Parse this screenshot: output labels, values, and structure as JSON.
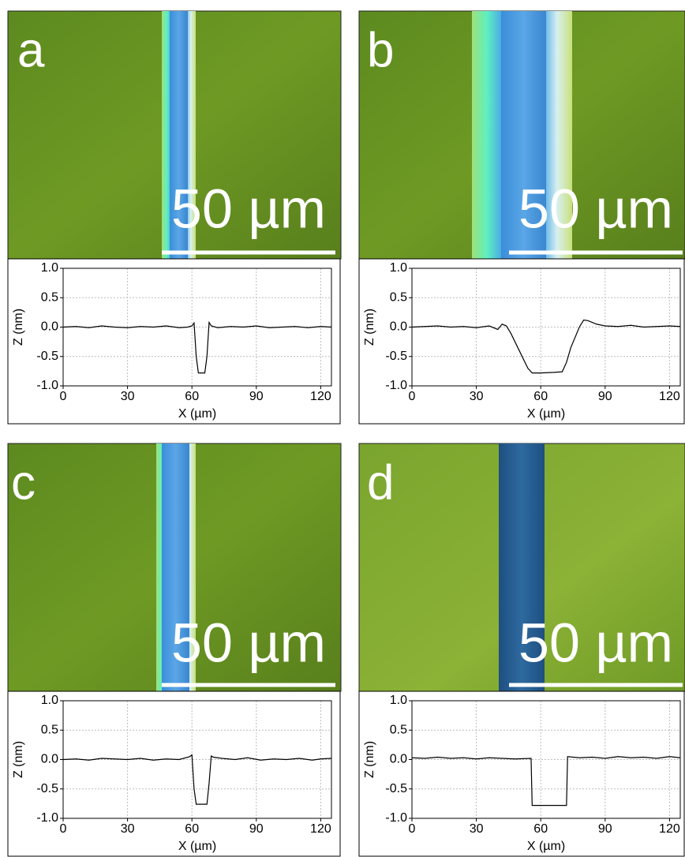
{
  "panels": [
    {
      "label": "a",
      "scale_bar": "50 µm"
    },
    {
      "label": "b",
      "scale_bar": "50 µm"
    },
    {
      "label": "c",
      "scale_bar": "50 µm"
    },
    {
      "label": "d",
      "scale_bar": "50 µm"
    }
  ],
  "chart_data": [
    {
      "type": "line",
      "xlabel": "X (µm)",
      "ylabel": "Z (nm)",
      "color": "#000000",
      "grid": true,
      "xlim": [
        0,
        125
      ],
      "ylim": [
        -1,
        1
      ],
      "xticks": [
        0,
        30,
        60,
        90,
        120
      ],
      "yticks": [
        {
          "value": 1,
          "label": "1.0"
        },
        {
          "value": 0.5,
          "label": "0.5"
        },
        {
          "value": 0,
          "label": "0.0"
        },
        {
          "value": -0.5,
          "label": "-0.5"
        },
        {
          "value": -1,
          "label": "-1.0"
        }
      ],
      "x": [
        0,
        6,
        12,
        18,
        24,
        30,
        36,
        42,
        48,
        54,
        58,
        60,
        61,
        62,
        63,
        66,
        67,
        68,
        69,
        72,
        78,
        84,
        90,
        96,
        102,
        108,
        114,
        120,
        125
      ],
      "values": [
        0,
        0.01,
        -0.01,
        0.02,
        0,
        -0.01,
        0.01,
        0,
        0.02,
        -0.01,
        0,
        0.02,
        0.07,
        -0.5,
        -0.78,
        -0.78,
        -0.5,
        0.08,
        0.02,
        -0.01,
        0.01,
        0,
        0.02,
        -0.01,
        0,
        0.01,
        -0.01,
        0.01,
        0
      ]
    },
    {
      "type": "line",
      "xlabel": "X (µm)",
      "ylabel": "Z (nm)",
      "color": "#000000",
      "grid": true,
      "xlim": [
        0,
        125
      ],
      "ylim": [
        -1,
        1
      ],
      "xticks": [
        0,
        30,
        60,
        90,
        120
      ],
      "yticks": [
        {
          "value": 1,
          "label": "1.0"
        },
        {
          "value": 0.5,
          "label": "0.5"
        },
        {
          "value": 0,
          "label": "0.0"
        },
        {
          "value": -0.5,
          "label": "-0.5"
        },
        {
          "value": -1,
          "label": "-1.0"
        }
      ],
      "x": [
        0,
        6,
        12,
        18,
        24,
        30,
        36,
        40,
        42,
        44,
        46,
        50,
        54,
        56,
        60,
        66,
        70,
        72,
        74,
        78,
        80,
        82,
        86,
        90,
        96,
        102,
        108,
        114,
        120,
        125
      ],
      "values": [
        0,
        0.01,
        0.02,
        0,
        0.01,
        -0.01,
        0.02,
        -0.04,
        0.05,
        0.02,
        -0.1,
        -0.4,
        -0.7,
        -0.78,
        -0.78,
        -0.77,
        -0.76,
        -0.6,
        -0.35,
        0,
        0.12,
        0.11,
        0.05,
        0.02,
        0.01,
        0.03,
        0,
        0.01,
        0.02,
        0.01
      ]
    },
    {
      "type": "line",
      "xlabel": "X (µm)",
      "ylabel": "Z (nm)",
      "color": "#000000",
      "grid": true,
      "xlim": [
        0,
        125
      ],
      "ylim": [
        -1,
        1
      ],
      "xticks": [
        0,
        30,
        60,
        90,
        120
      ],
      "yticks": [
        {
          "value": 1,
          "label": "1.0"
        },
        {
          "value": 0.5,
          "label": "0.5"
        },
        {
          "value": 0,
          "label": "0.0"
        },
        {
          "value": -0.5,
          "label": "-0.5"
        },
        {
          "value": -1,
          "label": "-1.0"
        }
      ],
      "x": [
        0,
        6,
        12,
        18,
        24,
        30,
        36,
        42,
        48,
        54,
        59,
        60,
        61,
        62,
        67,
        68,
        69,
        70,
        74,
        80,
        86,
        92,
        98,
        104,
        110,
        116,
        120,
        125
      ],
      "values": [
        0,
        0.01,
        -0.01,
        0.02,
        0.01,
        0,
        0.02,
        -0.01,
        0.01,
        0,
        0.05,
        0.08,
        -0.5,
        -0.76,
        -0.76,
        -0.4,
        0.06,
        0.04,
        0.02,
        0,
        0.03,
        -0.01,
        0.01,
        0,
        0.02,
        -0.01,
        0.01,
        0.02
      ]
    },
    {
      "type": "line",
      "xlabel": "X (µm)",
      "ylabel": "Z (nm)",
      "color": "#000000",
      "grid": true,
      "xlim": [
        0,
        125
      ],
      "ylim": [
        -1,
        1
      ],
      "xticks": [
        0,
        30,
        60,
        90,
        120
      ],
      "yticks": [
        {
          "value": 1,
          "label": "1.0"
        },
        {
          "value": 0.5,
          "label": "0.5"
        },
        {
          "value": 0,
          "label": "0.0"
        },
        {
          "value": -0.5,
          "label": "-0.5"
        },
        {
          "value": -1,
          "label": "-1.0"
        }
      ],
      "x": [
        0,
        6,
        12,
        18,
        24,
        30,
        36,
        42,
        48,
        55.5,
        56,
        72,
        72.5,
        78,
        84,
        90,
        96,
        102,
        108,
        114,
        120,
        125
      ],
      "values": [
        0.03,
        0.02,
        0.04,
        0.02,
        0.03,
        0.01,
        0.03,
        0.02,
        0.01,
        0.02,
        -0.78,
        -0.78,
        0.05,
        0.03,
        0.04,
        0.02,
        0.05,
        0.03,
        0.04,
        0.02,
        0.05,
        0.03
      ]
    }
  ]
}
